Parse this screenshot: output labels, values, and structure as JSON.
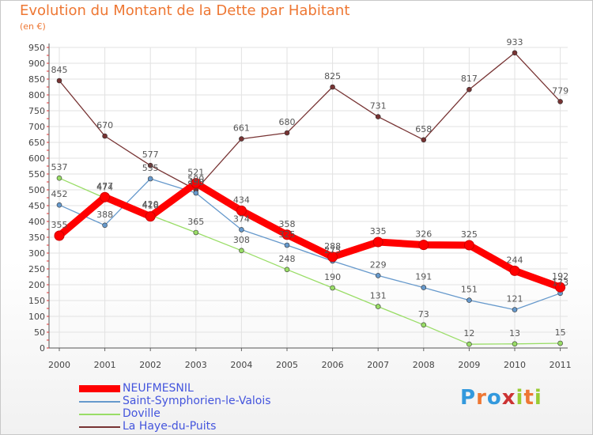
{
  "title": "Evolution du Montant de la Dette par Habitant",
  "subtitle": "(en €)",
  "logo": {
    "text": "Proxiti",
    "colors": [
      "#3399dd",
      "#ee7733",
      "#3399dd",
      "#cc3333",
      "#99cc33",
      "#ee7733",
      "#99cc33"
    ]
  },
  "chart_data": {
    "type": "line",
    "title": "Evolution du Montant de la Dette par Habitant",
    "subtitle": "(en €)",
    "x": [
      "2000",
      "2001",
      "2002",
      "2003",
      "2004",
      "2005",
      "2006",
      "2007",
      "2008",
      "2009",
      "2010",
      "2011"
    ],
    "ylim": [
      0,
      950
    ],
    "yticks": [
      0,
      50,
      100,
      150,
      200,
      250,
      300,
      350,
      400,
      450,
      500,
      550,
      600,
      650,
      700,
      750,
      800,
      850,
      900,
      950
    ],
    "grid": true,
    "legend_position": "bottom-left",
    "series": [
      {
        "name": "NEUFMESNIL",
        "color": "#ff0000",
        "values": [
          355,
          477,
          416,
          521,
          434,
          358,
          288,
          335,
          326,
          325,
          244,
          192
        ]
      },
      {
        "name": "Saint-Symphorien-le-Valois",
        "color": "#6699cc",
        "values": [
          452,
          388,
          535,
          490,
          374,
          325,
          275,
          229,
          191,
          151,
          121,
          173
        ]
      },
      {
        "name": "Doville",
        "color": "#99dd66",
        "values": [
          537,
          474,
          420,
          365,
          308,
          248,
          190,
          131,
          73,
          12,
          13,
          15
        ]
      },
      {
        "name": "La Haye-du-Puits",
        "color": "#773333",
        "values": [
          845,
          670,
          577,
          500,
          661,
          680,
          825,
          731,
          658,
          817,
          933,
          779
        ]
      }
    ]
  }
}
